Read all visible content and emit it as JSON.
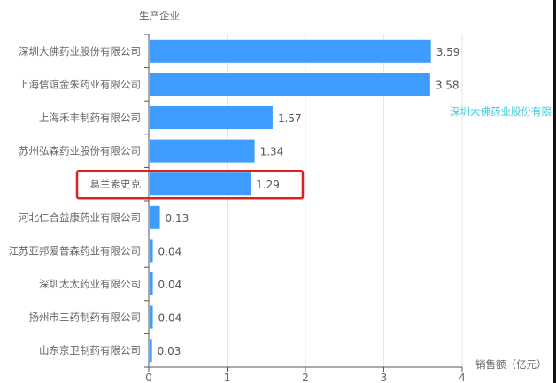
{
  "chart_data": {
    "type": "bar",
    "orientation": "horizontal",
    "ylabel": "生产企业",
    "xlabel": "销售额（亿元）",
    "categories": [
      "深圳大佛药业股份有限公司",
      "上海信谊金朱药业有限公司",
      "上海禾丰制药有限公司",
      "苏州弘森药业股份有限公司",
      "葛兰素史克",
      "河北仁合益康药业有限公司",
      "江苏亚邦爱普森药业有限公司",
      "深圳太太药业有限公司",
      "扬州市三药制药有限公司",
      "山东京卫制药有限公司"
    ],
    "values": [
      3.59,
      3.58,
      1.57,
      1.34,
      1.29,
      0.13,
      0.04,
      0.04,
      0.04,
      0.03
    ],
    "value_labels": [
      "3.59",
      "3.58",
      "1.57",
      "1.34",
      "1.29",
      "0.13",
      "0.04",
      "0.04",
      "0.04",
      "0.03"
    ],
    "xlim": [
      0,
      4
    ],
    "xticks": [
      "0",
      "1",
      "2",
      "3",
      "4"
    ],
    "grid": true,
    "bar_color": "#3e9bff",
    "highlighted_category": "葛兰素史克",
    "highlight_color": "#e02020"
  },
  "side_note": "深圳大佛药业股份有限"
}
